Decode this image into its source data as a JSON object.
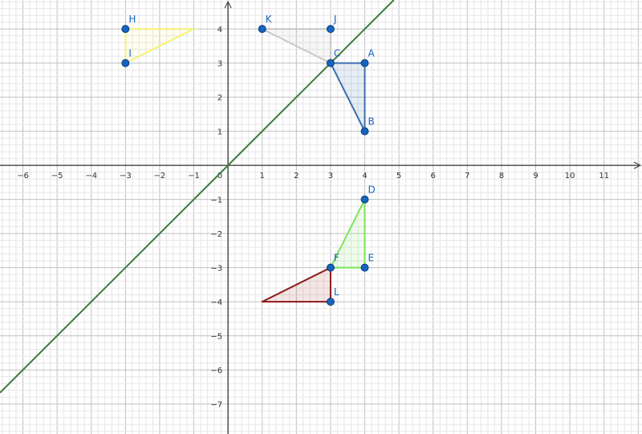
{
  "chart_data": {
    "type": "scatter",
    "xlim": [
      -6.67,
      12.11
    ],
    "ylim": [
      -7.88,
      4.85
    ],
    "grid": true,
    "minor_grid_divisions": 5,
    "x_ticks": [
      -6,
      -5,
      -4,
      -3,
      -2,
      -1,
      0,
      1,
      2,
      3,
      4,
      5,
      6,
      7,
      8,
      9,
      10,
      11
    ],
    "y_ticks": [
      -7,
      -6,
      -5,
      -4,
      -3,
      -2,
      -1,
      1,
      2,
      3,
      4
    ],
    "origin_label": "0",
    "line": {
      "equation": "y = x",
      "color": "#3d7a3d"
    },
    "points": [
      {
        "name": "A",
        "x": 4,
        "y": 3
      },
      {
        "name": "B",
        "x": 4,
        "y": 1
      },
      {
        "name": "C",
        "x": 3,
        "y": 3
      },
      {
        "name": "D",
        "x": 4,
        "y": -1
      },
      {
        "name": "E",
        "x": 4,
        "y": -3
      },
      {
        "name": "F",
        "x": 3,
        "y": -3
      },
      {
        "name": "H",
        "x": -3,
        "y": 4
      },
      {
        "name": "I",
        "x": -3,
        "y": 3
      },
      {
        "name": "J",
        "x": 3,
        "y": 4
      },
      {
        "name": "K",
        "x": 1,
        "y": 4
      },
      {
        "name": "L",
        "x": 3,
        "y": -4
      }
    ],
    "polygons": [
      {
        "vertices": [
          [
            4,
            3
          ],
          [
            4,
            1
          ],
          [
            3,
            3
          ]
        ],
        "stroke": "#3d6fb0",
        "fill": "#3d6fb0"
      },
      {
        "vertices": [
          [
            1,
            4
          ],
          [
            3,
            4
          ],
          [
            3,
            3
          ]
        ],
        "stroke": "#c8c8c8",
        "fill": "#bdbdbd"
      },
      {
        "vertices": [
          [
            -3,
            4
          ],
          [
            -3,
            3
          ],
          [
            -1,
            4
          ]
        ],
        "stroke": "#f5f07a",
        "fill": "#f5f07a"
      },
      {
        "vertices": [
          [
            4,
            -1
          ],
          [
            4,
            -3
          ],
          [
            3,
            -3
          ]
        ],
        "stroke": "#7ee35a",
        "fill": "#7ee35a"
      },
      {
        "vertices": [
          [
            3,
            -3
          ],
          [
            3,
            -4
          ],
          [
            1,
            -4
          ]
        ],
        "stroke": "#8b1a1a",
        "fill": "#a33"
      }
    ],
    "point_color": "#1565c0"
  }
}
